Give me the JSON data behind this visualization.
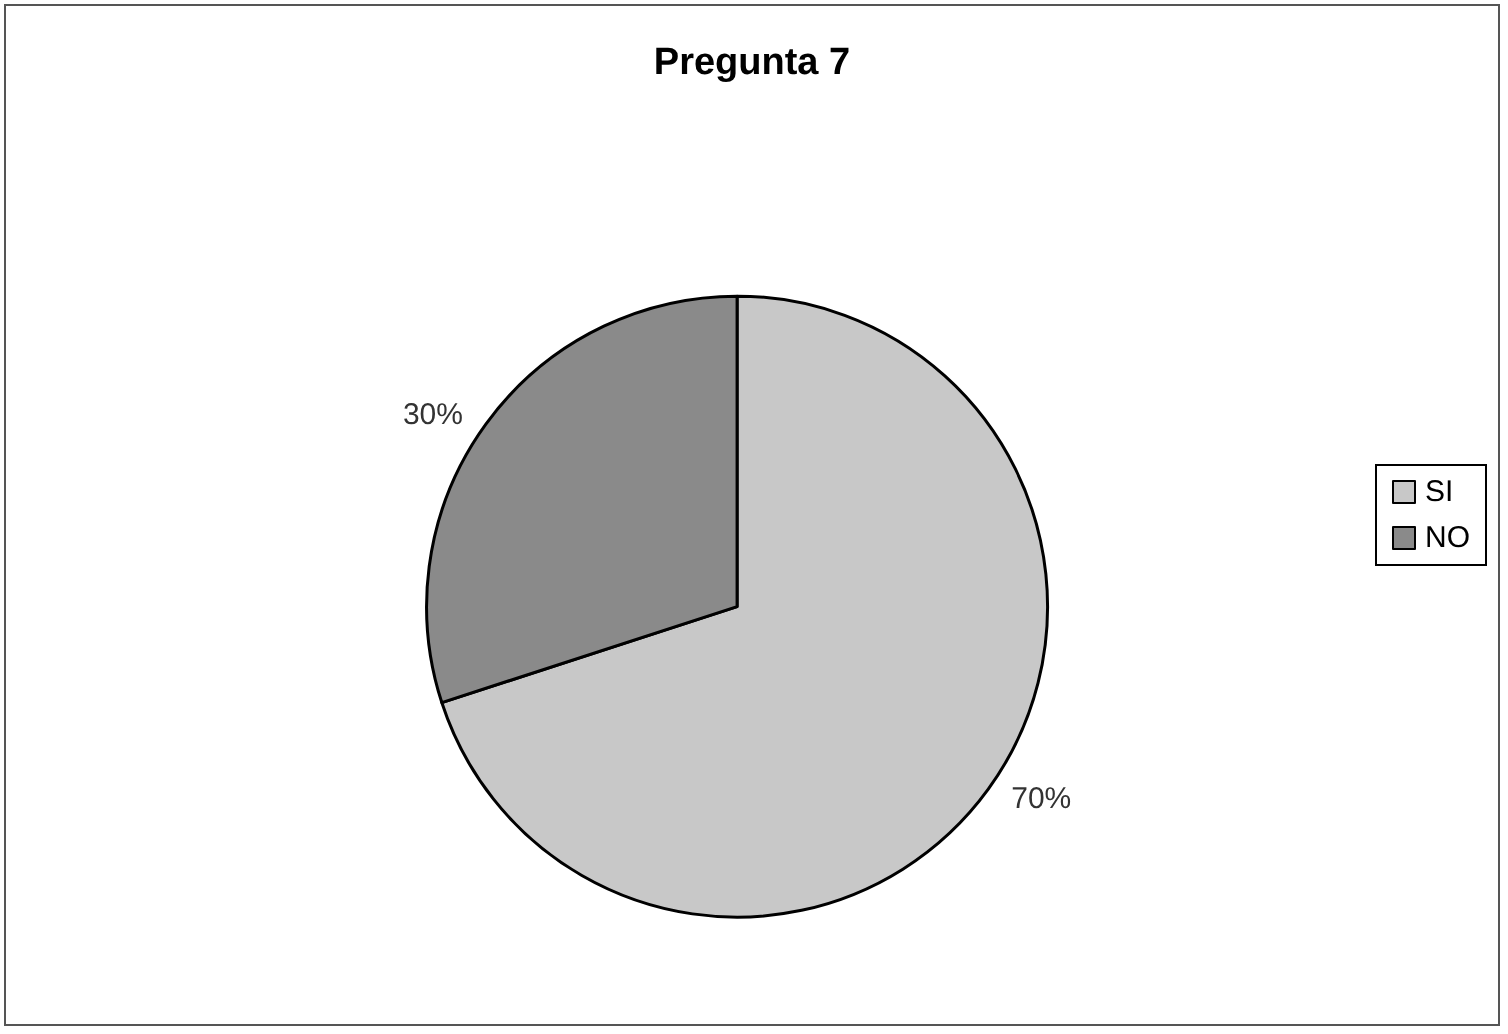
{
  "chart_data": {
    "type": "pie",
    "title": "Pregunta 7",
    "categories": [
      "SI",
      "NO"
    ],
    "values": [
      70,
      30
    ],
    "value_labels": [
      "70%",
      "30%"
    ],
    "colors": [
      "#c8c8c8",
      "#8a8a8a"
    ],
    "legend": "right"
  }
}
